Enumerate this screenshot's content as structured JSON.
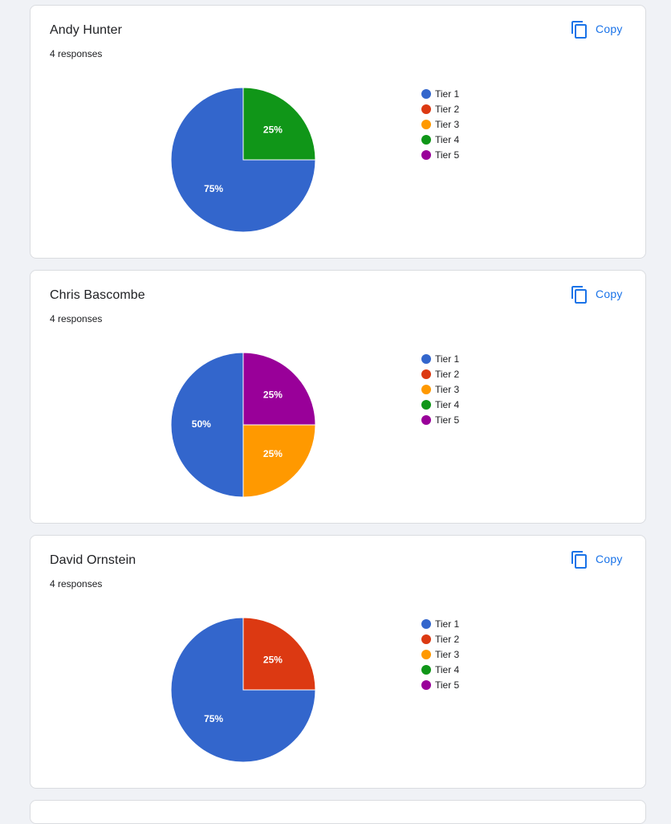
{
  "colors": {
    "tier1": "#3366cc",
    "tier2": "#dc3912",
    "tier3": "#ff9900",
    "tier4": "#109618",
    "tier5": "#990099",
    "link": "#1a73e8"
  },
  "icons": {
    "copy": "copy-icon"
  },
  "cards": [
    {
      "title": "Andy Hunter",
      "responses": "4 responses",
      "copy_label": "Copy",
      "legend": [
        "Tier 1",
        "Tier 2",
        "Tier 3",
        "Tier 4",
        "Tier 5"
      ]
    },
    {
      "title": "Chris Bascombe",
      "responses": "4 responses",
      "copy_label": "Copy",
      "legend": [
        "Tier 1",
        "Tier 2",
        "Tier 3",
        "Tier 4",
        "Tier 5"
      ]
    },
    {
      "title": "David Ornstein",
      "responses": "4 responses",
      "copy_label": "Copy",
      "legend": [
        "Tier 1",
        "Tier 2",
        "Tier 3",
        "Tier 4",
        "Tier 5"
      ]
    }
  ],
  "chart_data": [
    {
      "type": "pie",
      "title": "Andy Hunter",
      "categories": [
        "Tier 1",
        "Tier 2",
        "Tier 3",
        "Tier 4",
        "Tier 5"
      ],
      "values": [
        75,
        0,
        0,
        25,
        0
      ],
      "labels": [
        "75%",
        "",
        "",
        "25%",
        ""
      ],
      "legend": "right"
    },
    {
      "type": "pie",
      "title": "Chris Bascombe",
      "categories": [
        "Tier 1",
        "Tier 2",
        "Tier 3",
        "Tier 4",
        "Tier 5"
      ],
      "values": [
        50,
        0,
        25,
        0,
        25
      ],
      "labels": [
        "50%",
        "",
        "25%",
        "",
        "25%"
      ],
      "legend": "right"
    },
    {
      "type": "pie",
      "title": "David Ornstein",
      "categories": [
        "Tier 1",
        "Tier 2",
        "Tier 3",
        "Tier 4",
        "Tier 5"
      ],
      "values": [
        75,
        25,
        0,
        0,
        0
      ],
      "labels": [
        "75%",
        "25%",
        "",
        "",
        ""
      ],
      "legend": "right"
    }
  ]
}
